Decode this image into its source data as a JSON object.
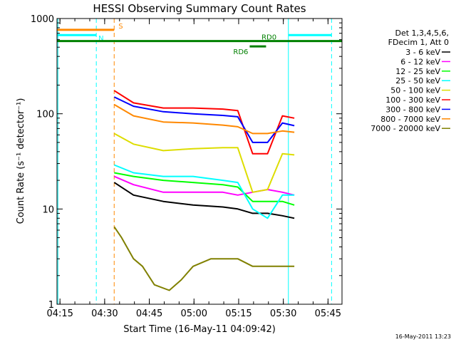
{
  "chart_data": {
    "type": "line",
    "title": "HESSI Observing Summary Count Rates",
    "xlabel": "Start Time (16-May-11 04:09:42)",
    "ylabel": "Count Rate (s⁻¹ detector⁻¹)",
    "yscale": "log",
    "ylim": [
      1,
      1000
    ],
    "xlim_minutes": [
      4.3,
      100
    ],
    "x_tick_labels": [
      "04:15",
      "04:30",
      "04:45",
      "05:00",
      "05:15",
      "05:30",
      "05:45"
    ],
    "x_ticks_minutes": [
      5.3,
      20.3,
      35.3,
      50.3,
      65.3,
      80.3,
      95.3
    ],
    "y_tick_labels": [
      "1",
      "10",
      "100",
      "1000"
    ],
    "y_ticks": [
      1,
      10,
      100,
      1000
    ],
    "legend_header": [
      "Det 1,3,4,5,6,",
      "FDecim 1, Att 0"
    ],
    "series": [
      {
        "name": "3 - 6 keV",
        "color": "#000000",
        "x": [
          23.5,
          30,
          40,
          50,
          60,
          65,
          70,
          75,
          80,
          84
        ],
        "y": [
          19,
          14,
          12,
          11,
          10.5,
          10,
          9,
          9,
          8.5,
          8
        ]
      },
      {
        "name": "6 - 12 keV",
        "color": "#ff00ff",
        "x": [
          23.5,
          30,
          40,
          50,
          60,
          65,
          70,
          75,
          80,
          84
        ],
        "y": [
          22,
          18,
          15,
          15,
          15,
          14,
          15,
          16,
          15,
          14
        ]
      },
      {
        "name": "12 - 25 keV",
        "color": "#00ff00",
        "x": [
          23.5,
          30,
          40,
          50,
          60,
          65,
          70,
          75,
          80,
          84
        ],
        "y": [
          24,
          22,
          20,
          19,
          18,
          17,
          12,
          12,
          12,
          11
        ]
      },
      {
        "name": "25 - 50 keV",
        "color": "#00ffff",
        "x": [
          23.5,
          30,
          40,
          50,
          60,
          65,
          70,
          75,
          80,
          84
        ],
        "y": [
          29,
          24,
          22,
          22,
          20,
          19,
          10,
          8,
          14,
          14
        ]
      },
      {
        "name": "50 - 100 keV",
        "color": "#dddd00",
        "x": [
          23.5,
          30,
          40,
          50,
          60,
          65,
          70,
          75,
          80,
          84
        ],
        "y": [
          62,
          48,
          41,
          43,
          44,
          44,
          15,
          16,
          38,
          37
        ]
      },
      {
        "name": "100 - 300 keV",
        "color": "#ff0000",
        "x": [
          23.5,
          30,
          40,
          50,
          60,
          65,
          70,
          75,
          80,
          84
        ],
        "y": [
          175,
          130,
          115,
          115,
          112,
          108,
          38,
          38,
          95,
          90
        ]
      },
      {
        "name": "300 - 800 keV",
        "color": "#0000ff",
        "x": [
          23.5,
          30,
          40,
          50,
          60,
          65,
          70,
          75,
          80,
          84
        ],
        "y": [
          150,
          120,
          105,
          100,
          96,
          93,
          50,
          50,
          80,
          75
        ]
      },
      {
        "name": "800 - 7000 keV",
        "color": "#ff8800",
        "x": [
          23.5,
          30,
          40,
          50,
          60,
          65,
          70,
          75,
          80,
          84
        ],
        "y": [
          125,
          95,
          82,
          80,
          76,
          73,
          62,
          62,
          66,
          64
        ]
      },
      {
        "name": "7000 - 20000 keV",
        "color": "#808000",
        "x": [
          23.5,
          26,
          30,
          33,
          37,
          42,
          46,
          50,
          56,
          60,
          65,
          70,
          75,
          80,
          84
        ],
        "y": [
          6.5,
          5,
          3,
          2.5,
          1.6,
          1.4,
          1.8,
          2.5,
          3,
          3,
          3,
          2.5,
          2.5,
          2.5,
          2.5
        ]
      }
    ],
    "annotations": [
      {
        "label": "S",
        "color": "#ff8800",
        "x_start": 4.3,
        "x_end": 23.5,
        "y": 760
      },
      {
        "label": "N",
        "color": "#00ffff",
        "x_start": 4.3,
        "x_end": 17.5,
        "y": 670
      },
      {
        "label": "",
        "color": "#00ffff",
        "x_start": 82,
        "x_end": 96.5,
        "y": 670
      },
      {
        "label": "RD6",
        "color": "#008000",
        "x_start": 69,
        "x_end": 74.5,
        "y": 510
      },
      {
        "label": "RD0",
        "color": "#008000",
        "x_start": 4.3,
        "x_end": 100,
        "y": 580
      }
    ],
    "vertical_markers": [
      {
        "x": 4.6,
        "color": "#00ffff",
        "style": "solid"
      },
      {
        "x": 17.5,
        "color": "#00ffff",
        "style": "dashed"
      },
      {
        "x": 23.5,
        "color": "#ff8800",
        "style": "dashed"
      },
      {
        "x": 82,
        "color": "#00ffff",
        "style": "solid"
      },
      {
        "x": 96.5,
        "color": "#00ffff",
        "style": "dashed"
      }
    ],
    "grid": false,
    "legend_placement": "right"
  },
  "footer": {
    "timestamp": "16-May-2011 13:23"
  }
}
